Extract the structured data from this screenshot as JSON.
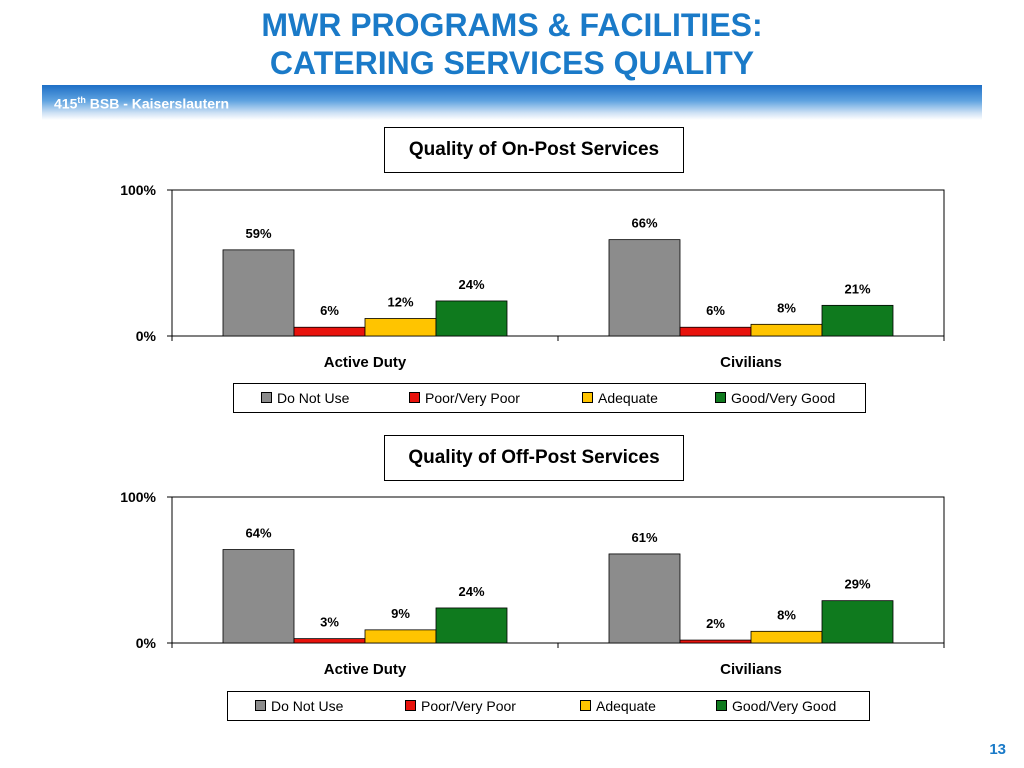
{
  "header": {
    "title_line1": "MWR PROGRAMS & FACILITIES:",
    "title_line2": "CATERING SERVICES QUALITY",
    "banner_prefix": "415",
    "banner_sup": "th",
    "banner_suffix": " BSB - Kaiserslautern"
  },
  "page_number": "13",
  "colors": {
    "do_not_use": "#8c8c8c",
    "poor": "#e8120c",
    "adequate": "#ffc400",
    "good": "#0f7a1e",
    "title_blue": "#1a7ac8"
  },
  "chart_data": [
    {
      "type": "bar",
      "title": "Quality of On-Post Services",
      "categories": [
        "Active Duty",
        "Civilians"
      ],
      "yticks": [
        "100%",
        "0%"
      ],
      "ylim": [
        0,
        100
      ],
      "legend_position": "bottom",
      "series": [
        {
          "name": "Do Not Use",
          "values": [
            59,
            66
          ],
          "labels": [
            "59%",
            "66%"
          ]
        },
        {
          "name": "Poor/Very Poor",
          "values": [
            6,
            6
          ],
          "labels": [
            "6%",
            "6%"
          ]
        },
        {
          "name": "Adequate",
          "values": [
            12,
            8
          ],
          "labels": [
            "12%",
            "8%"
          ]
        },
        {
          "name": "Good/Very Good",
          "values": [
            24,
            21
          ],
          "labels": [
            "24%",
            "21%"
          ]
        }
      ]
    },
    {
      "type": "bar",
      "title": "Quality of Off-Post Services",
      "categories": [
        "Active Duty",
        "Civilians"
      ],
      "yticks": [
        "100%",
        "0%"
      ],
      "ylim": [
        0,
        100
      ],
      "legend_position": "bottom",
      "series": [
        {
          "name": "Do Not Use",
          "values": [
            64,
            61
          ],
          "labels": [
            "64%",
            "61%"
          ]
        },
        {
          "name": "Poor/Very Poor",
          "values": [
            3,
            2
          ],
          "labels": [
            "3%",
            "2%"
          ]
        },
        {
          "name": "Adequate",
          "values": [
            9,
            8
          ],
          "labels": [
            "9%",
            "8%"
          ]
        },
        {
          "name": "Good/Very Good",
          "values": [
            24,
            29
          ],
          "labels": [
            "24%",
            "29%"
          ]
        }
      ]
    }
  ]
}
